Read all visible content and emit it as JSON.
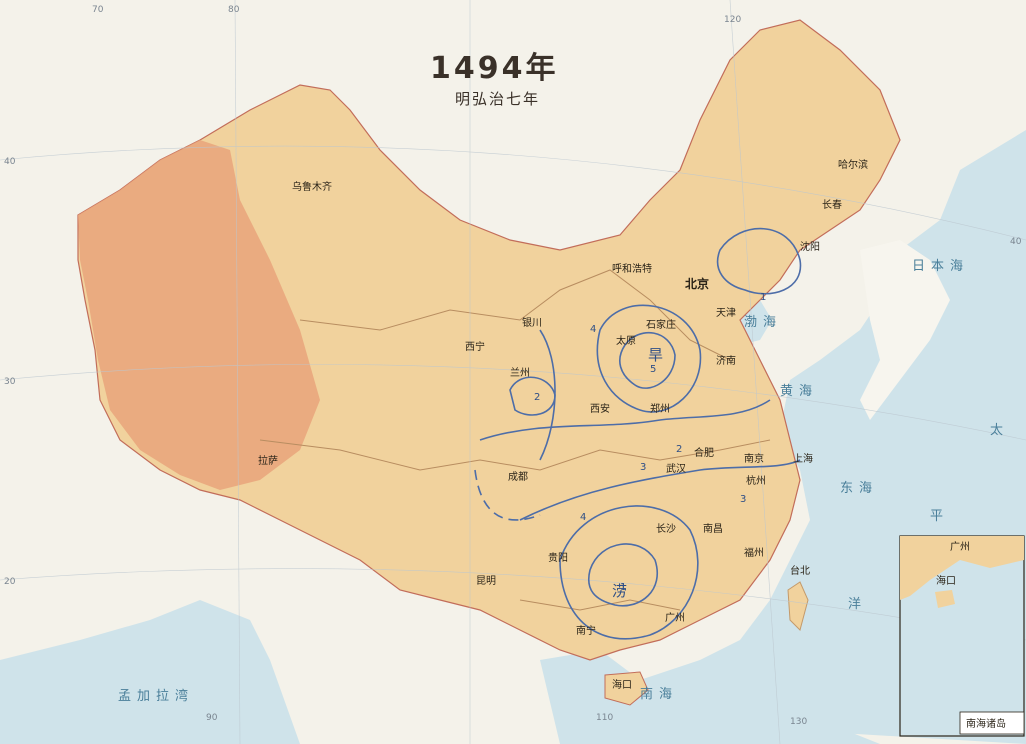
{
  "title": "1494年",
  "subtitle": "明弘治七年",
  "cities": [
    {
      "name": "乌鲁木齐"
    },
    {
      "name": "哈尔滨"
    },
    {
      "name": "长春"
    },
    {
      "name": "沈阳"
    },
    {
      "name": "呼和浩特"
    },
    {
      "name": "北京"
    },
    {
      "name": "天津"
    },
    {
      "name": "银川"
    },
    {
      "name": "石家庄"
    },
    {
      "name": "太原"
    },
    {
      "name": "西宁"
    },
    {
      "name": "兰州"
    },
    {
      "name": "济南"
    },
    {
      "name": "郑州"
    },
    {
      "name": "西安"
    },
    {
      "name": "合肥"
    },
    {
      "name": "南京"
    },
    {
      "name": "上海"
    },
    {
      "name": "拉萨"
    },
    {
      "name": "成都"
    },
    {
      "name": "武汉"
    },
    {
      "name": "杭州"
    },
    {
      "name": "长沙"
    },
    {
      "name": "南昌"
    },
    {
      "name": "福州"
    },
    {
      "name": "贵阳"
    },
    {
      "name": "台北"
    },
    {
      "name": "昆明"
    },
    {
      "name": "广州"
    },
    {
      "name": "南宁"
    },
    {
      "name": "海口"
    }
  ],
  "seas": [
    {
      "name": "渤海"
    },
    {
      "name": "黄海"
    },
    {
      "name": "东海"
    },
    {
      "name": "日本海"
    },
    {
      "name": "南海"
    },
    {
      "name": "太"
    },
    {
      "name": "平"
    },
    {
      "name": "洋"
    },
    {
      "name": "孟加拉湾"
    }
  ],
  "zones": [
    {
      "name": "旱"
    },
    {
      "name": "涝"
    }
  ],
  "iso_values": [
    "1",
    "2",
    "3",
    "4",
    "5"
  ],
  "grid_labels": [
    "70",
    "80",
    "90",
    "110",
    "120",
    "130",
    "40",
    "30",
    "20",
    "40"
  ],
  "inset": {
    "label": "南海诸岛",
    "cities": [
      {
        "name": "广州"
      },
      {
        "name": "海口"
      }
    ]
  },
  "colors": {
    "sea": "#cfe3ea",
    "land_outside": "#f4f2ea",
    "china": "#f1d29d",
    "west_china": "#e9a57b",
    "isoline": "#4d6da8",
    "river": "#b88d60",
    "border": "#c26d5a"
  }
}
